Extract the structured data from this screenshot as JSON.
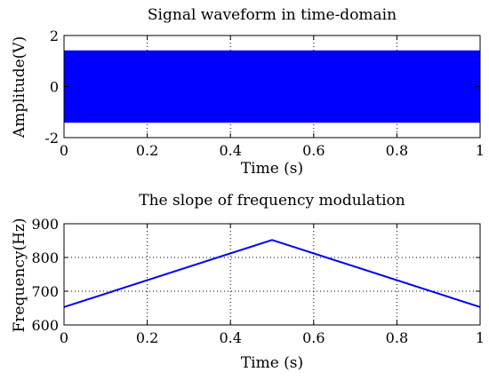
{
  "chart_data": [
    {
      "type": "area",
      "title": "Signal waveform in time-domain",
      "xlabel": "Time (s)",
      "ylabel": "Amplitude(V)",
      "xlim": [
        0,
        1
      ],
      "ylim": [
        -2,
        2
      ],
      "x_ticks": [
        "0",
        "0.2",
        "0.4",
        "0.6",
        "0.8",
        "1"
      ],
      "y_ticks": [
        "-2",
        "0",
        "2"
      ],
      "grid": true,
      "series": [
        {
          "x": [
            0,
            1
          ],
          "upper": [
            1.4,
            1.4
          ],
          "lower": [
            -1.4,
            -1.4
          ],
          "color": "#0000ff"
        }
      ]
    },
    {
      "type": "line",
      "title": "The slope of frequency modulation",
      "xlabel": "Time (s)",
      "ylabel": "Frequency(Hz)",
      "xlim": [
        0,
        1
      ],
      "ylim": [
        600,
        900
      ],
      "x_ticks": [
        "0",
        "0.2",
        "0.4",
        "0.6",
        "0.8",
        "1"
      ],
      "y_ticks": [
        "600",
        "700",
        "800",
        "900"
      ],
      "grid": true,
      "series": [
        {
          "x": [
            0,
            0.5,
            1
          ],
          "y": [
            653,
            852,
            653
          ],
          "color": "#0000ff"
        }
      ]
    }
  ]
}
